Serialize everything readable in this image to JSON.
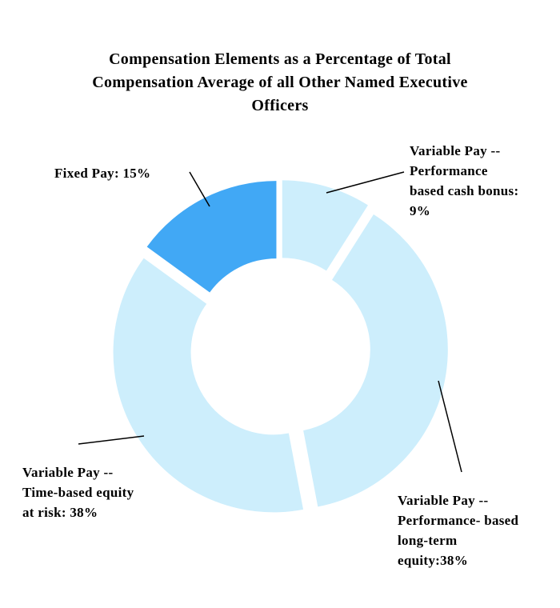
{
  "chart_data": {
    "type": "donut",
    "title": "Compensation Elements as a Percentage of Total Compensation Average of all Other Named Executive Officers",
    "values": [
      9,
      38,
      38,
      15
    ],
    "value_labels": [
      "Variable Pay -- Performance based cash bonus: 9%",
      "Variable Pay -- Performance- based long-term equity:38%",
      "Variable Pay -- Time-based equity at risk: 38%",
      "Fixed Pay: 15%"
    ],
    "colors": [
      "#cdeefc",
      "#cdeefc",
      "#cdeefc",
      "#41a8f5"
    ]
  }
}
